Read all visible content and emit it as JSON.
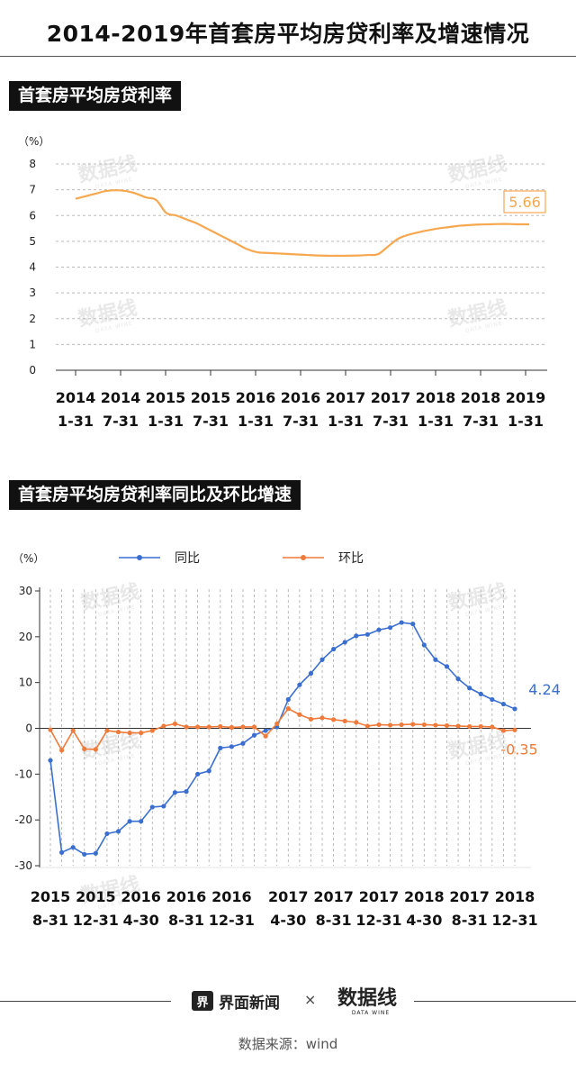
{
  "title": "2014-2019年首套房平均房贷利率及增速情况",
  "watermark": "数据线",
  "section1": {
    "label": "首套房平均房贷利率",
    "chart_data": {
      "type": "line",
      "unit_label": "（%）",
      "ylim": [
        0,
        8
      ],
      "yticks": [
        "0",
        "1",
        "2",
        "3",
        "4",
        "5",
        "6",
        "7",
        "8"
      ],
      "grid": true,
      "x_tick_labels": [
        [
          "2014",
          "1-31"
        ],
        [
          "2014",
          "7-31"
        ],
        [
          "2015",
          "1-31"
        ],
        [
          "2015",
          "7-31"
        ],
        [
          "2016",
          "1-31"
        ],
        [
          "2016",
          "7-31"
        ],
        [
          "2017",
          "1-31"
        ],
        [
          "2017",
          "7-31"
        ],
        [
          "2018",
          "1-31"
        ],
        [
          "2018",
          "7-31"
        ],
        [
          "2019",
          "1-31"
        ]
      ],
      "series": [
        {
          "color": "#f5a850",
          "values": [
            6.65,
            6.75,
            6.85,
            6.95,
            6.98,
            6.95,
            6.85,
            6.7,
            6.6,
            6.1,
            6.0,
            5.85,
            5.7,
            5.5,
            5.3,
            5.1,
            4.9,
            4.7,
            4.58,
            4.55,
            4.53,
            4.51,
            4.49,
            4.47,
            4.45,
            4.44,
            4.44,
            4.44,
            4.45,
            4.47,
            4.5,
            4.8,
            5.1,
            5.25,
            5.35,
            5.43,
            5.5,
            5.55,
            5.6,
            5.63,
            5.65,
            5.66,
            5.67,
            5.67,
            5.66,
            5.66
          ]
        }
      ],
      "last_value_label": "5.66"
    }
  },
  "section2": {
    "label": "首套房平均房贷利率同比及环比增速",
    "chart_data": {
      "type": "line",
      "unit_label": "（%）",
      "ylim": [
        -30,
        30
      ],
      "yticks": [
        "30",
        "20",
        "10",
        "0",
        "-10",
        "-20",
        "-30"
      ],
      "grid": true,
      "legend_position": "top",
      "x_tick_labels": [
        [
          "2015",
          "8-31"
        ],
        [
          "2015",
          "12-31"
        ],
        [
          "2016",
          "4-30"
        ],
        [
          "2016",
          "8-31"
        ],
        [
          "2016",
          "12-31"
        ],
        [
          "2017",
          "4-30"
        ],
        [
          "2017",
          "8-31"
        ],
        [
          "2017",
          "12-31"
        ],
        [
          "2018",
          "4-30"
        ],
        [
          "2017",
          "8-31"
        ],
        [
          "2018",
          "12-31"
        ]
      ],
      "series": [
        {
          "name": "同比",
          "color": "#3a6fd1",
          "values": [
            -7,
            -27.1,
            -26,
            -27.5,
            -27.3,
            -23,
            -22.5,
            -20.3,
            -20.3,
            -17.2,
            -17,
            -14,
            -13.8,
            -10,
            -9.3,
            -4.3,
            -4,
            -3.3,
            -1.5,
            -0.5,
            0.3,
            6.3,
            9.5,
            12,
            15,
            17.3,
            18.8,
            20.2,
            20.5,
            21.5,
            22,
            23.1,
            22.8,
            18.2,
            15,
            13.5,
            10.8,
            8.8,
            7.5,
            6.3,
            5.3,
            4.24
          ]
        },
        {
          "name": "环比",
          "color": "#f07a3a",
          "values": [
            -0.3,
            -4.8,
            -0.5,
            -4.5,
            -4.6,
            -0.5,
            -0.8,
            -1,
            -1,
            -0.5,
            0.5,
            1,
            0.3,
            0.3,
            0.3,
            0.4,
            0.2,
            0.3,
            0.3,
            -1.7,
            1,
            4.3,
            3,
            2,
            2.3,
            1.9,
            1.6,
            1.3,
            0.5,
            0.8,
            0.7,
            0.8,
            0.9,
            0.8,
            0.7,
            0.6,
            0.5,
            0.4,
            0.4,
            0.3,
            -0.5,
            -0.35
          ]
        }
      ],
      "end_labels": [
        "4.24",
        "-0.35"
      ]
    }
  },
  "footer": {
    "brand1_icon": "界",
    "brand1": "界面新闻",
    "times": "×",
    "source": "数据来源：wind"
  }
}
